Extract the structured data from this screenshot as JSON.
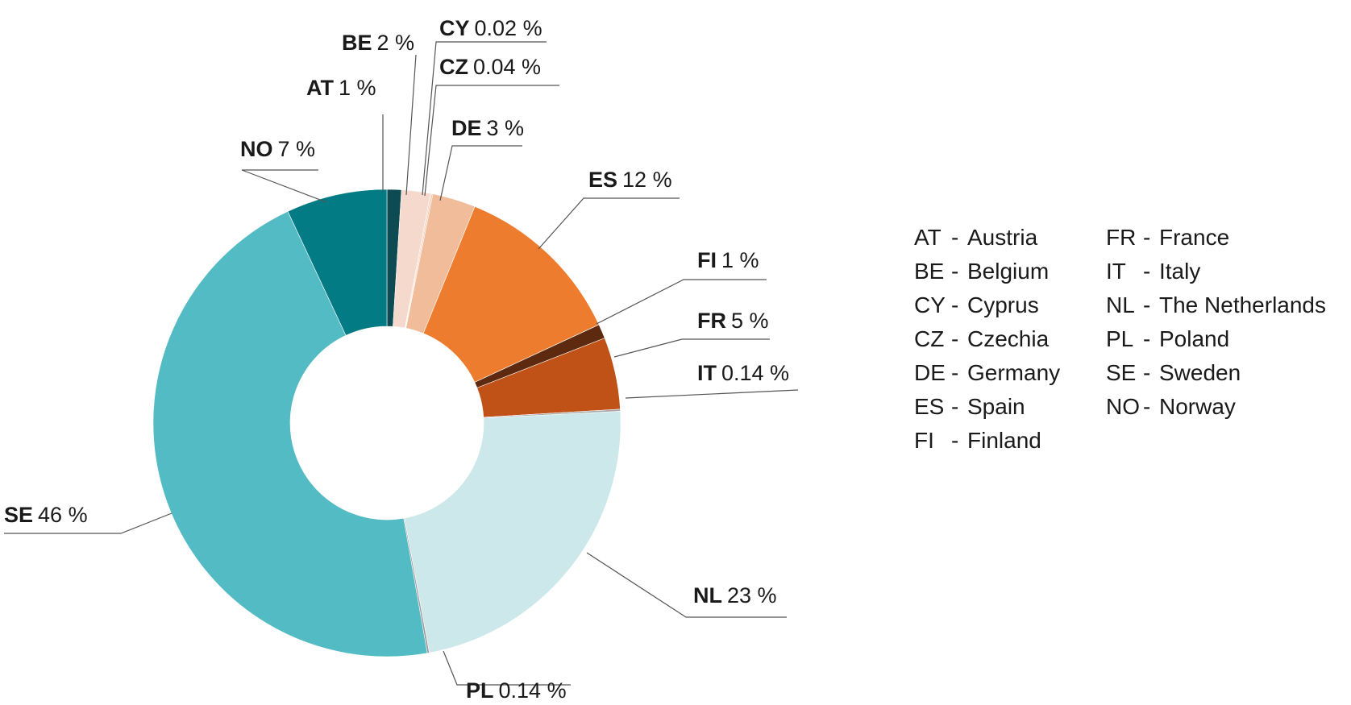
{
  "chart_data": {
    "type": "pie",
    "donut": true,
    "legend_placement": "right",
    "slices": [
      {
        "code": "AT",
        "value": 1,
        "label": "1 %",
        "color": "#0d4a51"
      },
      {
        "code": "BE",
        "value": 2,
        "label": "2 %",
        "color": "#f6d9cd"
      },
      {
        "code": "CY",
        "value": 0.02,
        "label": "0.02 %",
        "color": "#f3c9b3"
      },
      {
        "code": "CZ",
        "value": 0.04,
        "label": "0.04 %",
        "color": "#efb89d"
      },
      {
        "code": "DE",
        "value": 3,
        "label": "3 %",
        "color": "#f0bc9a"
      },
      {
        "code": "ES",
        "value": 12,
        "label": "12 %",
        "color": "#ee7c2e"
      },
      {
        "code": "FI",
        "value": 1,
        "label": "1 %",
        "color": "#5e2a0f"
      },
      {
        "code": "FR",
        "value": 5,
        "label": "5 %",
        "color": "#c05217"
      },
      {
        "code": "IT",
        "value": 0.14,
        "label": "0.14 %",
        "color": "#a8a8a8"
      },
      {
        "code": "NL",
        "value": 23,
        "label": "23 %",
        "color": "#cde8ea"
      },
      {
        "code": "PL",
        "value": 0.14,
        "label": "0.14 %",
        "color": "#9a9a9a"
      },
      {
        "code": "SE",
        "value": 46,
        "label": "46 %",
        "color": "#52bbc3"
      },
      {
        "code": "NO",
        "value": 7,
        "label": "7 %",
        "color": "#027b84"
      }
    ],
    "legend": [
      [
        {
          "code": "AT",
          "name": "Austria"
        },
        {
          "code": "BE",
          "name": "Belgium"
        },
        {
          "code": "CY",
          "name": "Cyprus"
        },
        {
          "code": "CZ",
          "name": "Czechia"
        },
        {
          "code": "DE",
          "name": "Germany"
        },
        {
          "code": "ES",
          "name": "Spain"
        },
        {
          "code": "FI",
          "name": "Finland"
        }
      ],
      [
        {
          "code": "FR",
          "name": "France"
        },
        {
          "code": "IT",
          "name": "Italy"
        },
        {
          "code": "NL",
          "name": "The Netherlands"
        },
        {
          "code": "PL",
          "name": "Poland"
        },
        {
          "code": "SE",
          "name": "Sweden"
        },
        {
          "code": "NO",
          "name": "Norway"
        }
      ]
    ]
  }
}
